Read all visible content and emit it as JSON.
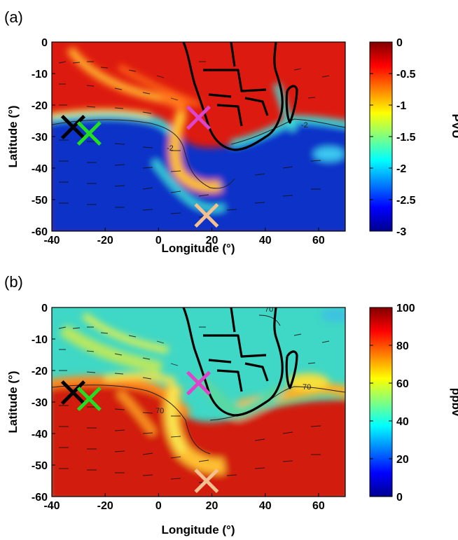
{
  "chart_data": [
    {
      "panel_label": "(a)",
      "type": "heatmap",
      "xlabel": "Longitude (°)",
      "ylabel": "Latitude (°)",
      "xlim": [
        -40,
        70
      ],
      "ylim": [
        -60,
        0
      ],
      "xticks": [
        -40,
        -20,
        0,
        20,
        40,
        60
      ],
      "yticks": [
        0,
        -10,
        -20,
        -30,
        -40,
        -50,
        -60
      ],
      "colorbar": {
        "label": "PVU",
        "range": [
          -3,
          0
        ],
        "ticks": [
          "0",
          "-0.5",
          "-1",
          "-1.5",
          "-2",
          "-2.5",
          "-3"
        ],
        "colormap": "jet"
      },
      "contour_labels": [
        {
          "text": "-2",
          "lon": -5,
          "lat": -37
        },
        {
          "text": "-2",
          "lon": 45,
          "lat": -27
        }
      ],
      "markers": [
        {
          "lon": -32,
          "lat": -27,
          "color": "#000000"
        },
        {
          "lon": -26,
          "lat": -29,
          "color": "#22dd22"
        },
        {
          "lon": 15,
          "lat": -24,
          "color": "#dd44cc"
        },
        {
          "lon": 18,
          "lat": -55,
          "color": "#f5c08f"
        }
      ]
    },
    {
      "panel_label": "(b)",
      "type": "heatmap",
      "xlabel": "Longitude (°)",
      "ylabel": "Latitude (°)",
      "xlim": [
        -40,
        70
      ],
      "ylim": [
        -60,
        0
      ],
      "xticks": [
        -40,
        -20,
        0,
        20,
        40,
        60
      ],
      "yticks": [
        0,
        -10,
        -20,
        -30,
        -40,
        -50,
        -60
      ],
      "colorbar": {
        "label": "ppbv",
        "range": [
          0,
          100
        ],
        "ticks": [
          "100",
          "80",
          "60",
          "40",
          "20",
          "0"
        ],
        "colormap": "jet"
      },
      "contour_labels": [
        {
          "text": "70",
          "lon": 40,
          "lat": -3
        },
        {
          "text": "70",
          "lon": 52,
          "lat": -25
        },
        {
          "text": "70",
          "lon": -5,
          "lat": -38
        }
      ],
      "markers": [
        {
          "lon": -32,
          "lat": -27,
          "color": "#000000"
        },
        {
          "lon": -26,
          "lat": -29,
          "color": "#22dd22"
        },
        {
          "lon": 15,
          "lat": -24,
          "color": "#dd44cc"
        },
        {
          "lon": 18,
          "lat": -55,
          "color": "#f5c08f"
        }
      ]
    }
  ]
}
